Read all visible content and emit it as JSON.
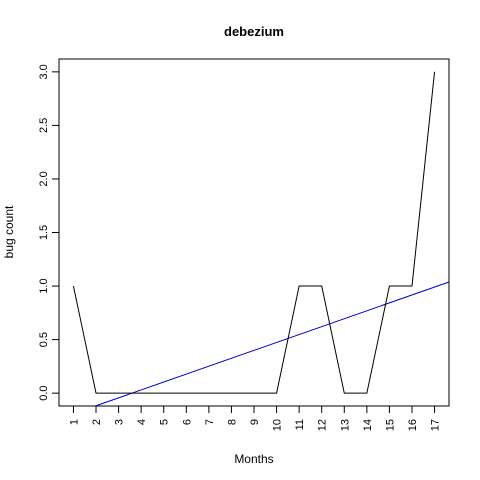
{
  "chart_data": {
    "type": "line",
    "title": "debezium",
    "xlabel": "Months",
    "ylabel": "bug count",
    "x": [
      1,
      2,
      3,
      4,
      5,
      6,
      7,
      8,
      9,
      10,
      11,
      12,
      13,
      14,
      15,
      16,
      17
    ],
    "x_tick_labels": [
      "1",
      "2",
      "3",
      "4",
      "5",
      "6",
      "7",
      "8",
      "9",
      "10",
      "11",
      "12",
      "13",
      "14",
      "15",
      "16",
      "17"
    ],
    "y_tick_labels": [
      "0.0",
      "0.5",
      "1.0",
      "1.5",
      "2.0",
      "2.5",
      "3.0"
    ],
    "y_ticks": [
      0,
      0.5,
      1.0,
      1.5,
      2.0,
      2.5,
      3.0
    ],
    "xlim": [
      0.36,
      17.64
    ],
    "ylim": [
      -0.12,
      3.12
    ],
    "grid": false,
    "series": [
      {
        "values": [
          1,
          0,
          0,
          0,
          0,
          0,
          0,
          0,
          0,
          0,
          1,
          1,
          0,
          0,
          1,
          1,
          3
        ],
        "color": "#000000"
      }
    ],
    "trend_line": {
      "slope": 0.0739,
      "intercept": -0.2656,
      "color": "#0000cc"
    }
  }
}
